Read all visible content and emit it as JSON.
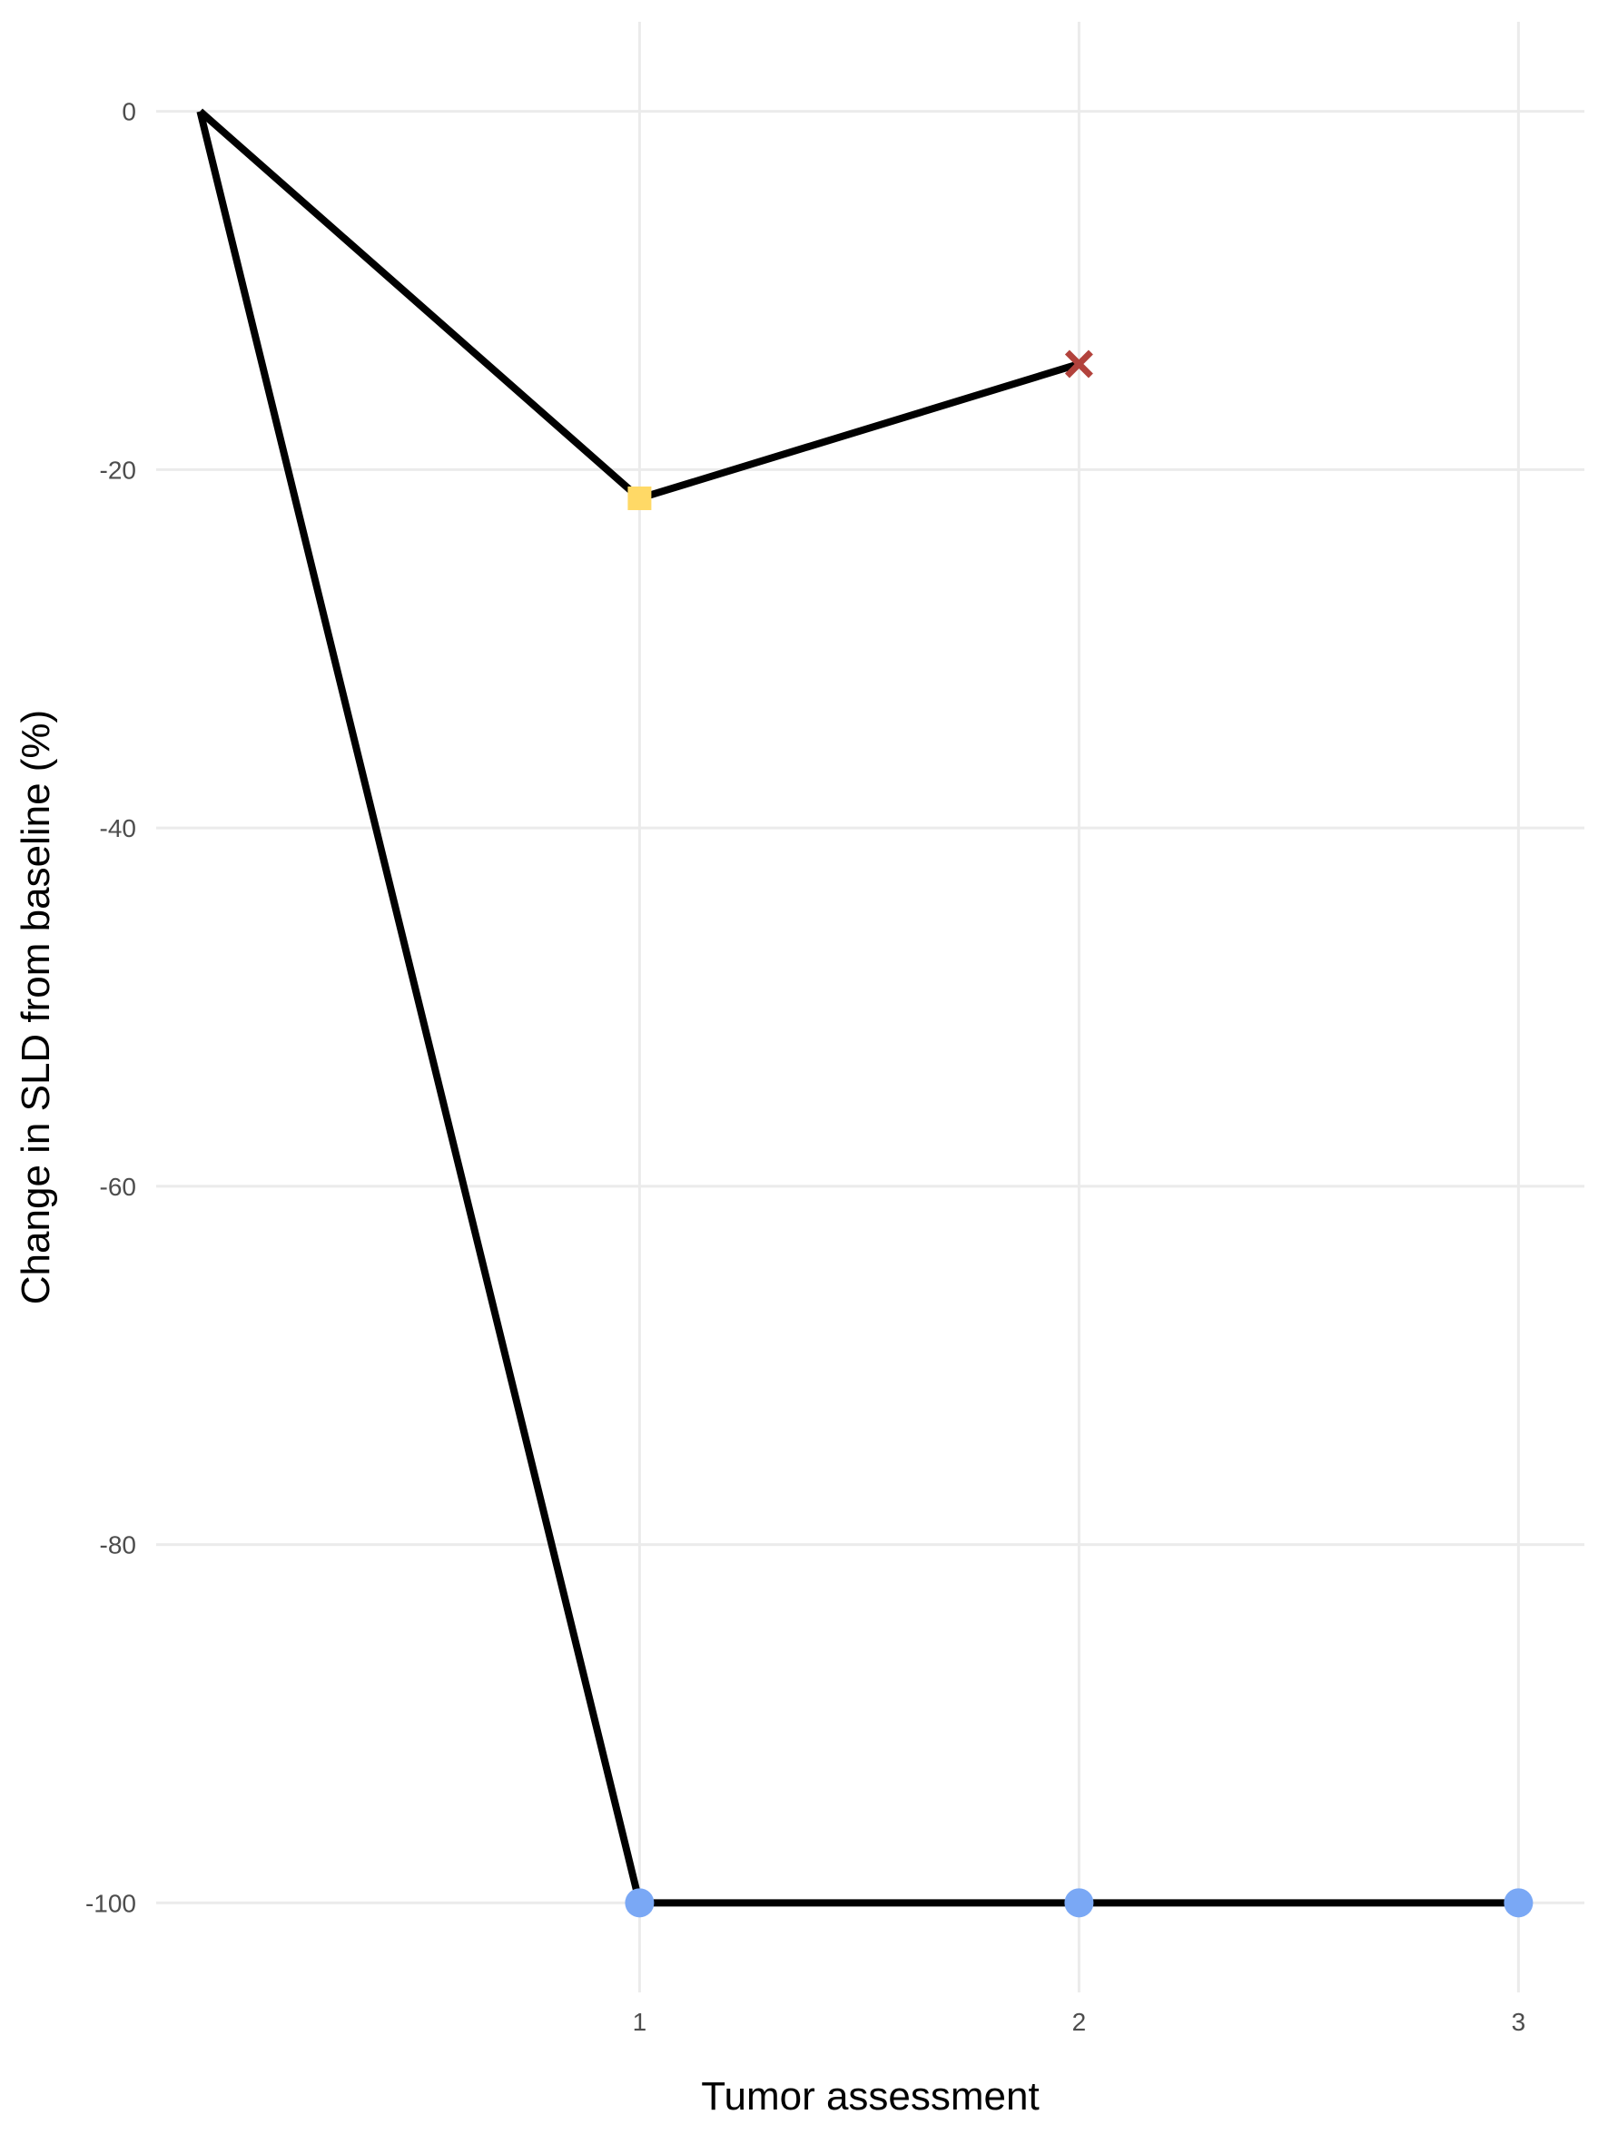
{
  "chart_data": {
    "type": "line",
    "xlabel": "Tumor assessment",
    "ylabel": "Change in SLD from baseline (%)",
    "x_ticks": [
      1,
      2,
      3
    ],
    "y_ticks": [
      0,
      -20,
      -40,
      -60,
      -80,
      -100
    ],
    "xlim": [
      -0.1,
      3.15
    ],
    "ylim": [
      -105,
      5
    ],
    "grid": true,
    "legend": "none",
    "series": [
      {
        "x": [
          0,
          1,
          2
        ],
        "y": [
          0,
          -21.6,
          -14.1
        ],
        "markers": [
          null,
          "square",
          "cross"
        ],
        "marker_colors": [
          null,
          "#FFD966",
          "#B2423C"
        ]
      },
      {
        "x": [
          0,
          1,
          2,
          3
        ],
        "y": [
          0,
          -100,
          -100,
          -100
        ],
        "markers": [
          null,
          "circle",
          "circle",
          "circle"
        ],
        "marker_colors": [
          null,
          "#7AA8F5",
          "#7AA8F5",
          "#7AA8F5"
        ]
      }
    ],
    "colors": {
      "line": "#000000",
      "grid": "#EBEBEB"
    }
  }
}
